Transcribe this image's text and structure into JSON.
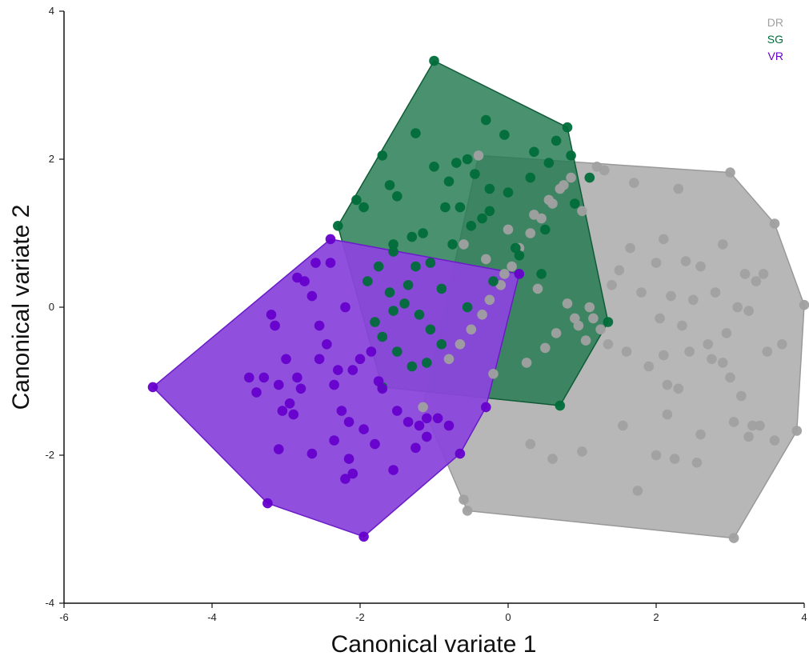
{
  "chart_data": {
    "type": "scatter",
    "title": "",
    "xlabel": "Canonical variate 1",
    "ylabel": "Canonical variate 2",
    "xlim": [
      -6,
      4
    ],
    "ylim": [
      -4,
      4
    ],
    "x_ticks": [
      -6,
      -4,
      -2,
      0,
      2,
      4
    ],
    "y_ticks": [
      -4,
      -2,
      0,
      2,
      4
    ],
    "grid": false,
    "legend_position": "top-right",
    "series": [
      {
        "name": "DR",
        "color": "#a0a0a0",
        "hull_fill": "#b3b3b3",
        "hull_stroke": "#999999",
        "hull_opacity": 0.95,
        "hull": [
          [
            -0.4,
            2.05
          ],
          [
            3.0,
            1.82
          ],
          [
            3.6,
            1.13
          ],
          [
            4.0,
            0.03
          ],
          [
            3.9,
            -1.67
          ],
          [
            3.05,
            -3.12
          ],
          [
            -0.55,
            -2.75
          ],
          [
            -1.15,
            -1.35
          ]
        ],
        "x": [
          -0.4,
          3.0,
          3.6,
          4.0,
          3.9,
          3.05,
          -0.55,
          -1.15,
          1.2,
          1.3,
          1.7,
          2.1,
          2.4,
          2.6,
          2.9,
          3.2,
          3.45,
          2.3,
          2.0,
          1.5,
          1.8,
          2.2,
          2.5,
          2.8,
          3.1,
          3.35,
          3.7,
          1.4,
          1.1,
          1.05,
          1.25,
          2.05,
          2.35,
          2.7,
          2.95,
          3.25,
          3.5,
          2.1,
          2.45,
          1.9,
          1.6,
          1.35,
          1.15,
          0.95,
          0.85,
          0.7,
          0.6,
          0.45,
          0.3,
          0.15,
          0.05,
          -0.1,
          -0.25,
          -0.35,
          -0.5,
          -0.65,
          -0.8,
          -0.2,
          0.25,
          0.5,
          0.65,
          0.9,
          0.8,
          0.4,
          -0.05,
          -0.3,
          -0.6,
          0.0,
          0.35,
          0.55,
          0.75,
          1.0,
          2.15,
          2.3,
          3.0,
          3.15,
          3.3,
          2.25,
          2.55,
          1.75,
          2.6,
          2.9,
          0.3,
          0.6,
          1.0,
          3.05,
          3.25,
          3.6,
          1.55,
          -0.6,
          2.0,
          2.15,
          3.4,
          2.75,
          1.65
        ],
        "y": [
          2.05,
          1.82,
          1.13,
          0.03,
          -1.67,
          -3.12,
          -2.75,
          -1.35,
          1.9,
          1.85,
          1.68,
          0.92,
          0.62,
          0.55,
          0.85,
          0.45,
          0.45,
          1.6,
          0.6,
          0.5,
          0.2,
          0.15,
          0.1,
          0.2,
          0.0,
          0.35,
          -0.5,
          0.3,
          0.0,
          -0.45,
          -0.3,
          -0.15,
          -0.25,
          -0.5,
          -0.35,
          -0.05,
          -0.6,
          -0.65,
          -0.6,
          -0.8,
          -0.6,
          -0.5,
          -0.15,
          -0.25,
          1.75,
          1.6,
          1.4,
          1.2,
          1.0,
          0.8,
          0.55,
          0.3,
          0.1,
          -0.1,
          -0.3,
          -0.5,
          -0.7,
          -0.9,
          -0.75,
          -0.55,
          -0.35,
          -0.15,
          0.05,
          0.25,
          0.45,
          0.65,
          0.85,
          1.05,
          1.25,
          1.45,
          1.65,
          1.3,
          -1.05,
          -1.1,
          -0.95,
          -1.2,
          -1.6,
          -2.05,
          -2.1,
          -2.48,
          -1.72,
          -0.75,
          -1.85,
          -2.05,
          -1.95,
          -1.55,
          -1.75,
          -1.8,
          -1.6,
          -2.6,
          -2.0,
          -1.45,
          -1.6,
          -0.7,
          0.8
        ]
      },
      {
        "name": "SG",
        "color": "#006d3a",
        "hull_fill": "#227a4f",
        "hull_stroke": "#0e5c35",
        "hull_opacity": 0.82,
        "hull": [
          [
            -1.0,
            3.33
          ],
          [
            0.8,
            2.43
          ],
          [
            1.35,
            -0.2
          ],
          [
            0.7,
            -1.33
          ],
          [
            -1.7,
            -1.08
          ],
          [
            -2.3,
            1.1
          ]
        ],
        "x": [
          -1.0,
          0.8,
          1.35,
          0.7,
          -1.7,
          -2.3,
          -1.7,
          -1.25,
          -0.3,
          -0.05,
          0.35,
          0.65,
          -1.6,
          -1.5,
          -1.95,
          -2.05,
          -1.0,
          -0.8,
          -0.7,
          -0.55,
          -0.45,
          -0.25,
          -0.85,
          -1.15,
          -1.3,
          -1.55,
          -1.75,
          -1.9,
          -1.6,
          -1.4,
          -1.2,
          -1.05,
          -0.9,
          -1.1,
          -1.3,
          -1.5,
          -1.7,
          -1.8,
          -1.55,
          -1.35,
          -1.05,
          -0.75,
          -0.5,
          -0.25,
          0.0,
          0.3,
          0.55,
          0.85,
          1.1,
          0.9,
          0.5,
          0.15,
          -0.2,
          -0.55,
          -0.9,
          -1.25,
          -1.55,
          -0.65,
          -0.35,
          0.1,
          0.45
        ],
        "y": [
          3.33,
          2.43,
          -0.2,
          -1.33,
          -1.08,
          1.1,
          2.05,
          2.35,
          2.53,
          2.33,
          2.1,
          2.25,
          1.65,
          1.5,
          1.35,
          1.45,
          1.9,
          1.7,
          1.95,
          2.0,
          1.8,
          1.6,
          1.35,
          1.0,
          0.95,
          0.75,
          0.55,
          0.35,
          0.2,
          0.05,
          -0.1,
          -0.3,
          -0.5,
          -0.75,
          -0.8,
          -0.6,
          -0.4,
          -0.2,
          -0.05,
          0.3,
          0.6,
          0.85,
          1.1,
          1.3,
          1.55,
          1.75,
          1.95,
          2.05,
          1.75,
          1.4,
          1.05,
          0.7,
          0.35,
          0.0,
          0.25,
          0.55,
          0.85,
          1.35,
          1.2,
          0.8,
          0.45
        ]
      },
      {
        "name": "VR",
        "color": "#6600cc",
        "hull_fill": "#8a46db",
        "hull_stroke": "#6a1bc8",
        "hull_opacity": 0.95,
        "hull": [
          [
            -4.8,
            -1.08
          ],
          [
            -2.4,
            0.92
          ],
          [
            0.15,
            0.45
          ],
          [
            -0.3,
            -1.35
          ],
          [
            -0.65,
            -1.98
          ],
          [
            -1.95,
            -3.1
          ],
          [
            -3.25,
            -2.65
          ]
        ],
        "x": [
          -4.8,
          -2.4,
          0.15,
          -0.3,
          -0.65,
          -1.95,
          -3.25,
          -2.75,
          -2.6,
          -2.85,
          -2.65,
          -2.4,
          -2.2,
          -3.2,
          -3.15,
          -3.0,
          -2.85,
          -2.55,
          -2.45,
          -2.55,
          -2.3,
          -2.1,
          -2.0,
          -1.85,
          -1.75,
          -1.7,
          -1.5,
          -1.35,
          -1.2,
          -1.1,
          -3.5,
          -3.4,
          -3.3,
          -3.1,
          -2.95,
          -2.8,
          -3.05,
          -2.9,
          -2.35,
          -2.25,
          -2.15,
          -1.95,
          -1.8,
          -2.15,
          -2.1,
          -1.55,
          -1.25,
          -1.1,
          -0.95,
          -0.8,
          -3.1,
          -2.65,
          -2.35,
          -2.2
        ],
        "y": [
          -1.08,
          0.92,
          0.45,
          -1.35,
          -1.98,
          -3.1,
          -2.65,
          0.35,
          0.6,
          0.4,
          0.15,
          0.6,
          0.0,
          -0.1,
          -0.25,
          -0.7,
          -0.95,
          -0.25,
          -0.5,
          -0.7,
          -0.85,
          -0.85,
          -0.7,
          -0.6,
          -1.0,
          -1.1,
          -1.4,
          -1.55,
          -1.6,
          -1.5,
          -0.95,
          -1.15,
          -0.95,
          -1.05,
          -1.3,
          -1.1,
          -1.4,
          -1.45,
          -1.05,
          -1.4,
          -1.55,
          -1.65,
          -1.85,
          -2.05,
          -2.25,
          -2.2,
          -1.9,
          -1.75,
          -1.5,
          -1.6,
          -1.92,
          -1.98,
          -1.8,
          -2.32
        ]
      }
    ]
  }
}
